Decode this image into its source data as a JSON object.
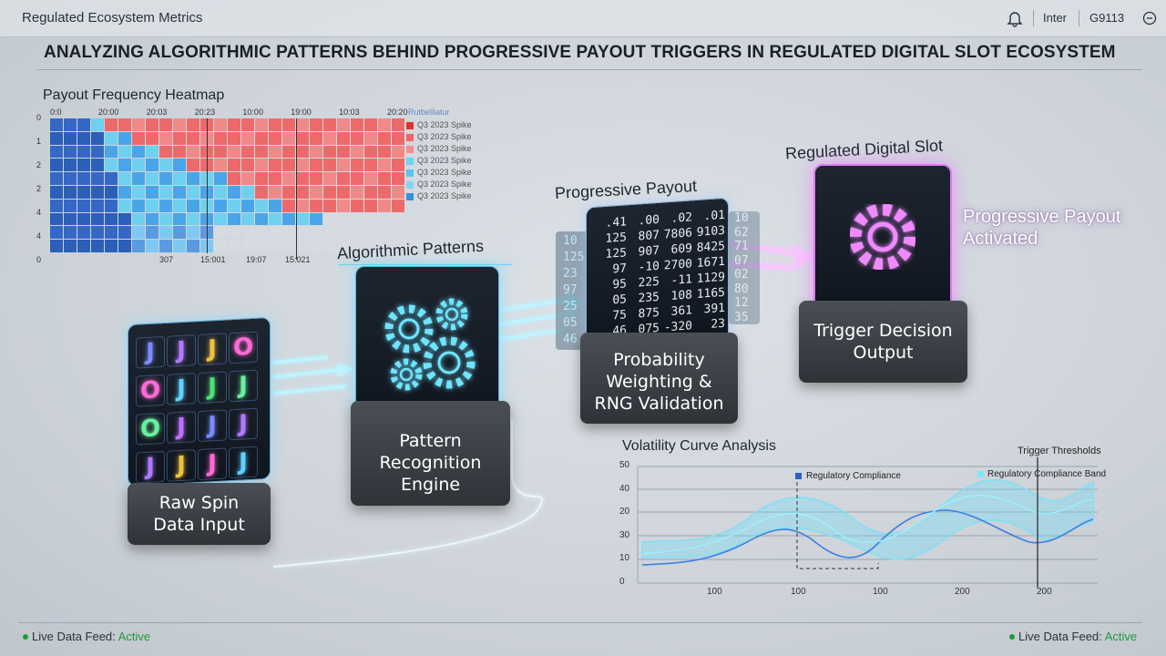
{
  "header": {
    "app_title": "Regulated Ecosystem Metrics",
    "font": "Inter",
    "code": "G9113"
  },
  "title": "ANALYZING ALGORITHMIC PATTERNS BEHIND PROGRESSIVE PAYOUT TRIGGERS IN REGULATED DIGITAL SLOT ECOSYSTEM",
  "heatmap": {
    "title": "Payout Frequency Heatmap",
    "y_labels": [
      "0",
      "1",
      "2",
      "2",
      "4",
      "4",
      "0"
    ],
    "top_labels": [
      "0:0",
      "20:00",
      "20:03",
      "20:23",
      "10:00",
      "19:00",
      "10:03",
      "20:20"
    ],
    "bottom_labels": [
      "307",
      "15:001",
      "19:07",
      "15:021"
    ],
    "legend_title": "Rutbelliatur",
    "legend": [
      "Q3 2023 Spike",
      "Q3 2023 Spike",
      "Q3 2023 Spike",
      "Q3 2023 Spike",
      "Q3 2023 Spike",
      "Q3 2023 Spike",
      "Q3 2023 Spike"
    ]
  },
  "pipeline": {
    "input": {
      "label": "Raw Spin Data Input",
      "reels": [
        [
          "J",
          "J",
          "J",
          "O"
        ],
        [
          "O",
          "J",
          "J",
          "J"
        ],
        [
          "O",
          "J",
          "J",
          "J"
        ],
        [
          "J",
          "J",
          "J",
          "J"
        ]
      ]
    },
    "engine": {
      "heading": "Algorithmic Patterns",
      "label": "Pattern Recognition Engine"
    },
    "weighting": {
      "heading": "Progressive Payout",
      "label": "Probability Weighting & RNG Validation",
      "left_column": [
        "10",
        "125",
        "23",
        "97",
        "25",
        "05",
        "46"
      ],
      "rows": [
        [
          ".41",
          ".00",
          ".02",
          ".01"
        ],
        [
          "125",
          "807",
          "7806",
          "9103"
        ],
        [
          "125",
          "907",
          "609",
          "8425"
        ],
        [
          "97",
          "-10",
          "2700",
          "1671"
        ],
        [
          "95",
          "225",
          "-11",
          "1129"
        ],
        [
          "05",
          "235",
          "108",
          "1165"
        ],
        [
          "75",
          "875",
          "361",
          "391"
        ],
        [
          "46",
          "075",
          "-320",
          "23"
        ]
      ],
      "right_column": [
        "10",
        "62",
        "71",
        "07",
        "02",
        "80",
        "12",
        "35"
      ]
    },
    "output": {
      "heading": "Regulated Digital Slot",
      "label": "Trigger Decision Output",
      "status": "Progressive Payout Activated"
    }
  },
  "volatility": {
    "title": "Volatility Curve Analysis",
    "y_labels": [
      "50",
      "40",
      "20",
      "30",
      "10",
      "0"
    ],
    "x_labels": [
      "100",
      "100",
      "100",
      "200",
      "200"
    ],
    "legend": [
      "Regulatory Compliance",
      "Regulatory Compliance Band"
    ],
    "threshold_label": "Trigger Thresholds"
  },
  "footer": {
    "left": {
      "label": "Live Data Feed:",
      "status": "Active"
    },
    "right": {
      "label": "Live Data Feed:",
      "status": "Active"
    }
  }
}
